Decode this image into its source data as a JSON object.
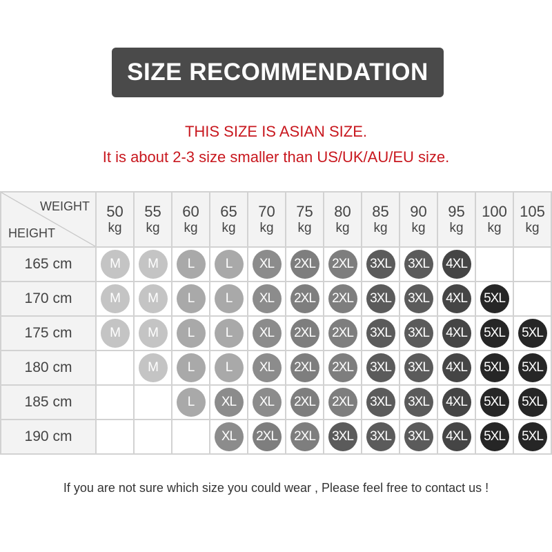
{
  "title": "SIZE RECOMMENDATION",
  "notes": [
    "THIS SIZE IS ASIAN SIZE.",
    "It is about 2-3 size smaller than US/UK/AU/EU size."
  ],
  "table": {
    "corner_weight": "WEIGHT",
    "corner_height": "HEIGHT",
    "weights": [
      "50",
      "55",
      "60",
      "65",
      "70",
      "75",
      "80",
      "85",
      "90",
      "95",
      "100",
      "105"
    ],
    "weight_unit": "kg",
    "height_unit": "cm",
    "rows": [
      {
        "height": "165",
        "sizes": [
          "M",
          "M",
          "L",
          "L",
          "XL",
          "2XL",
          "2XL",
          "3XL",
          "3XL",
          "4XL",
          "",
          ""
        ]
      },
      {
        "height": "170",
        "sizes": [
          "M",
          "M",
          "L",
          "L",
          "XL",
          "2XL",
          "2XL",
          "3XL",
          "3XL",
          "4XL",
          "5XL",
          ""
        ]
      },
      {
        "height": "175",
        "sizes": [
          "M",
          "M",
          "L",
          "L",
          "XL",
          "2XL",
          "2XL",
          "3XL",
          "3XL",
          "4XL",
          "5XL",
          "5XL"
        ]
      },
      {
        "height": "180",
        "sizes": [
          "",
          "M",
          "L",
          "L",
          "XL",
          "2XL",
          "2XL",
          "3XL",
          "3XL",
          "4XL",
          "5XL",
          "5XL"
        ]
      },
      {
        "height": "185",
        "sizes": [
          "",
          "",
          "L",
          "XL",
          "XL",
          "2XL",
          "2XL",
          "3XL",
          "3XL",
          "4XL",
          "5XL",
          "5XL"
        ]
      },
      {
        "height": "190",
        "sizes": [
          "",
          "",
          "",
          "XL",
          "2XL",
          "2XL",
          "3XL",
          "3XL",
          "3XL",
          "4XL",
          "5XL",
          "5XL"
        ]
      }
    ]
  },
  "size_colors": {
    "M": "#c4c4c4",
    "L": "#a9a9a9",
    "XL": "#8c8c8c",
    "2XL": "#7e7e7e",
    "3XL": "#5b5b5b",
    "4XL": "#454545",
    "5XL": "#262626"
  },
  "footer": "If you are not sure which size you could wear , Please feel free to contact us !"
}
